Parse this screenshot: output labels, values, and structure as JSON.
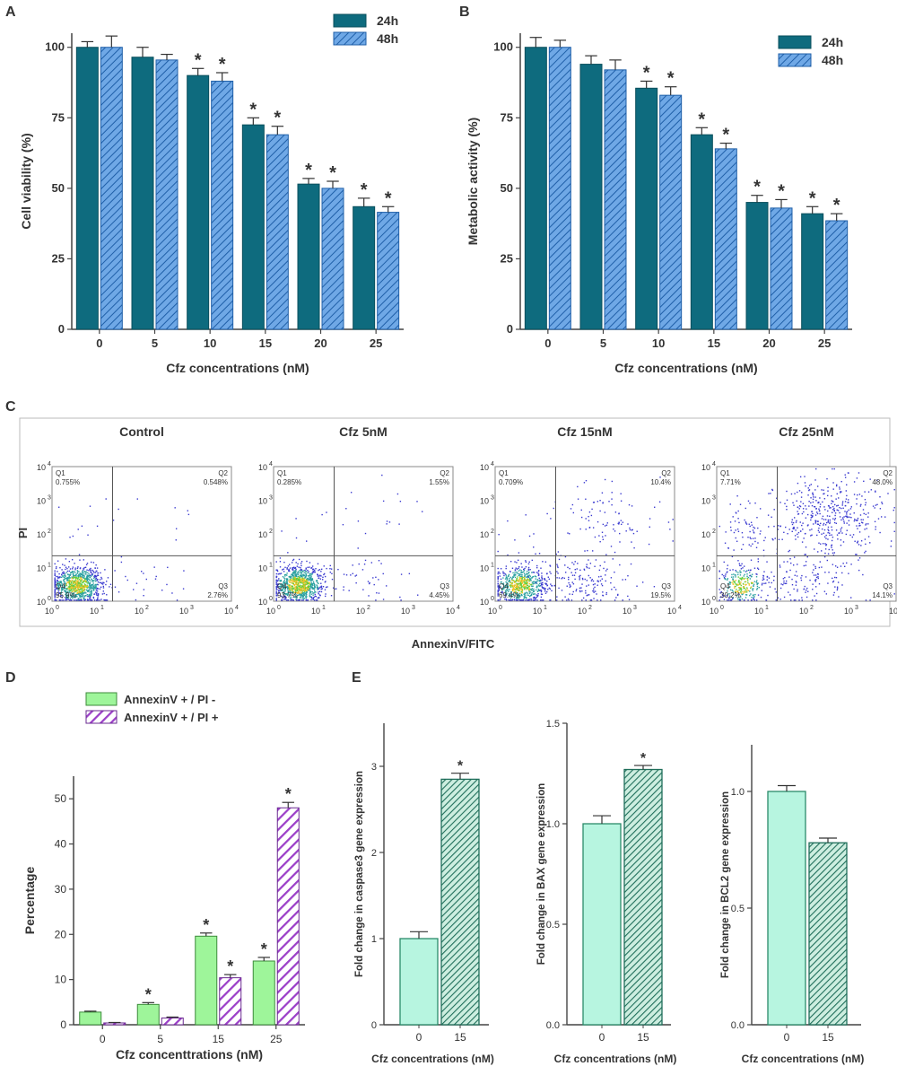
{
  "panels": {
    "A": "A",
    "B": "B",
    "C": "C",
    "D": "D",
    "E": "E"
  },
  "colors": {
    "teal": "#0e6b7e",
    "blue_hatch": "#4a90d9",
    "green": "#9ef59a",
    "purple": "#9b3fc8",
    "mint": "#b7f5e0",
    "dark_green_hatch": "#1f6e5a"
  },
  "chart_data": [
    {
      "id": "A",
      "type": "bar",
      "categories": [
        "0",
        "5",
        "10",
        "15",
        "20",
        "25"
      ],
      "series": [
        {
          "name": "24h",
          "values": [
            100,
            96.5,
            90,
            72.5,
            51.5,
            43.5
          ],
          "errors": [
            2,
            3.5,
            2.5,
            2.5,
            2,
            3
          ],
          "sig": [
            false,
            false,
            true,
            true,
            true,
            true
          ]
        },
        {
          "name": "48h",
          "values": [
            100,
            95.5,
            88,
            69,
            50,
            41.5
          ],
          "errors": [
            4,
            2,
            3,
            3,
            2.5,
            2
          ],
          "sig": [
            false,
            false,
            true,
            true,
            true,
            true
          ]
        }
      ],
      "xlabel": "Cfz concentrations (nM)",
      "ylabel": "Cell viability (%)",
      "ylim": [
        0,
        105
      ],
      "yticks": [
        "0",
        "25",
        "50",
        "75",
        "100"
      ],
      "legend": "top-right"
    },
    {
      "id": "B",
      "type": "bar",
      "categories": [
        "0",
        "5",
        "10",
        "15",
        "20",
        "25"
      ],
      "series": [
        {
          "name": "24h",
          "values": [
            100,
            94,
            85.5,
            69,
            45,
            41
          ],
          "errors": [
            3.5,
            3,
            2.5,
            2.5,
            2.5,
            2.5
          ],
          "sig": [
            false,
            false,
            true,
            true,
            true,
            true
          ]
        },
        {
          "name": "48h",
          "values": [
            100,
            92,
            83,
            64,
            43,
            38.5
          ],
          "errors": [
            2.5,
            3.5,
            3,
            2,
            3,
            2.5
          ],
          "sig": [
            false,
            false,
            true,
            true,
            true,
            true
          ]
        }
      ],
      "xlabel": "Cfz concentrations (nM)",
      "ylabel": "Metabolic activity (%)",
      "ylim": [
        0,
        105
      ],
      "yticks": [
        "0",
        "25",
        "50",
        "75",
        "100"
      ],
      "legend": "top-right"
    },
    {
      "id": "D",
      "type": "bar",
      "categories": [
        "0",
        "5",
        "15",
        "25"
      ],
      "series": [
        {
          "name": "AnnexinV + / PI -",
          "values": [
            2.8,
            4.5,
            19.6,
            14.1
          ],
          "errors": [
            0.2,
            0.4,
            0.7,
            0.8
          ],
          "sig": [
            false,
            true,
            true,
            true
          ]
        },
        {
          "name": "AnnexinV + / PI +",
          "values": [
            0.4,
            1.5,
            10.4,
            48.0
          ],
          "errors": [
            0.1,
            0.2,
            0.7,
            1.2
          ],
          "sig": [
            false,
            false,
            true,
            true
          ]
        }
      ],
      "xlabel": "Cfz concenttrations (nM)",
      "ylabel": "Percentage",
      "ylim": [
        0,
        55
      ],
      "yticks": [
        "0",
        "10",
        "20",
        "30",
        "40",
        "50"
      ],
      "legend": "top"
    },
    {
      "id": "E1",
      "type": "bar",
      "categories": [
        "0",
        "15"
      ],
      "values": [
        1.0,
        2.85
      ],
      "errors": [
        0.08,
        0.07
      ],
      "sig": [
        false,
        true
      ],
      "xlabel": "Cfz concentrations (nM)",
      "ylabel": "Fold change in caspase3 gene expression",
      "ylim": [
        0,
        3.5
      ],
      "yticks": [
        "0",
        "1",
        "2",
        "3"
      ]
    },
    {
      "id": "E2",
      "type": "bar",
      "categories": [
        "0",
        "15"
      ],
      "values": [
        1.0,
        1.27
      ],
      "errors": [
        0.04,
        0.02
      ],
      "sig": [
        false,
        true
      ],
      "xlabel": "Cfz concentrations (nM)",
      "ylabel": "Fold change in BAX gene expression",
      "ylim": [
        0,
        1.5
      ],
      "yticks": [
        "0.0",
        "0.5",
        "1.0",
        "1.5"
      ]
    },
    {
      "id": "E3",
      "type": "bar",
      "categories": [
        "0",
        "15"
      ],
      "values": [
        1.0,
        0.78
      ],
      "errors": [
        0.025,
        0.02
      ],
      "sig": [
        false,
        false
      ],
      "xlabel": "Cfz concentrations (nM)",
      "ylabel": "Fold change in BCL2 gene expression",
      "ylim": [
        0,
        1.2
      ],
      "yticks": [
        "0.0",
        "0.5",
        "1.0"
      ]
    },
    {
      "id": "C",
      "type": "scatter",
      "xlabel": "AnnexinV/FITC",
      "ylabel": "PI",
      "axis_scale": "log",
      "ticks": [
        "10^0",
        "10^1",
        "10^2",
        "10^3",
        "10^4"
      ],
      "plots": [
        {
          "title": "Control",
          "Q1": "0.755%",
          "Q2": "0.548%",
          "Q3": "2.76%",
          "Q4": "95.9%"
        },
        {
          "title": "Cfz 5nM",
          "Q1": "0.285%",
          "Q2": "1.55%",
          "Q3": "4.45%",
          "Q4": "93.7%"
        },
        {
          "title": "Cfz 15nM",
          "Q1": "0.709%",
          "Q2": "10.4%",
          "Q3": "19.5%",
          "Q4": "69.4%"
        },
        {
          "title": "Cfz 25nM",
          "Q1": "7.71%",
          "Q2": "48.0%",
          "Q3": "14.1%",
          "Q4": "30.2%"
        }
      ],
      "quadrant_labels": [
        "Q1",
        "Q2",
        "Q3",
        "Q4"
      ]
    }
  ],
  "significance_mark": "*"
}
